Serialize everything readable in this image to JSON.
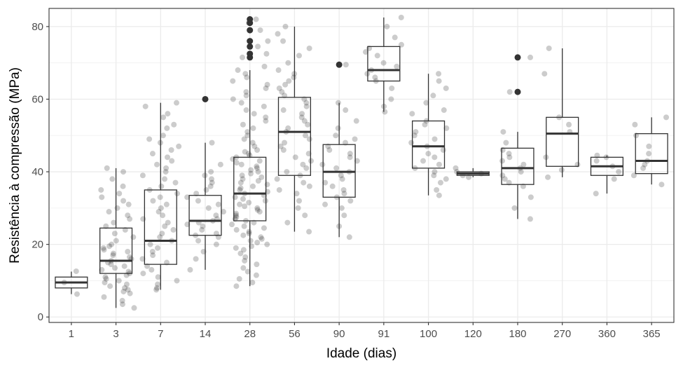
{
  "chart_data": {
    "type": "boxplot",
    "xlabel": "Idade (dias)",
    "ylabel": "Resistência à compressão (MPa)",
    "ylim": [
      -1.5,
      85
    ],
    "y_ticks": [
      "0",
      "20",
      "40",
      "60",
      "80"
    ],
    "grid": true,
    "categories": [
      "1",
      "3",
      "7",
      "14",
      "28",
      "56",
      "90",
      "91",
      "100",
      "120",
      "180",
      "270",
      "360",
      "365"
    ],
    "boxes": [
      {
        "q1": 8.0,
        "median": 9.5,
        "q3": 11.0,
        "whisker_low": 6.3,
        "whisker_high": 12.5,
        "outliers": []
      },
      {
        "q1": 12.0,
        "median": 15.5,
        "q3": 24.5,
        "whisker_low": 2.5,
        "whisker_high": 41.0,
        "outliers": []
      },
      {
        "q1": 14.5,
        "median": 21.0,
        "q3": 35.0,
        "whisker_low": 7.5,
        "whisker_high": 59.0,
        "outliers": []
      },
      {
        "q1": 22.5,
        "median": 26.5,
        "q3": 33.5,
        "whisker_low": 13.0,
        "whisker_high": 48.0,
        "outliers": [
          60.0
        ]
      },
      {
        "q1": 26.5,
        "median": 34.0,
        "q3": 44.0,
        "whisker_low": 8.5,
        "whisker_high": 68.0,
        "outliers": [
          71.5,
          72.5,
          74.5,
          76.0,
          79.0,
          81.0,
          82.0
        ]
      },
      {
        "q1": 39.0,
        "median": 51.0,
        "q3": 60.5,
        "whisker_low": 23.5,
        "whisker_high": 80.0,
        "outliers": []
      },
      {
        "q1": 33.0,
        "median": 40.0,
        "q3": 47.5,
        "whisker_low": 22.0,
        "whisker_high": 59.0,
        "outliers": [
          69.5
        ]
      },
      {
        "q1": 65.0,
        "median": 68.0,
        "q3": 74.5,
        "whisker_low": 56.5,
        "whisker_high": 82.5,
        "outliers": []
      },
      {
        "q1": 41.0,
        "median": 47.0,
        "q3": 54.0,
        "whisker_low": 33.5,
        "whisker_high": 67.0,
        "outliers": []
      },
      {
        "q1": 39.0,
        "median": 39.5,
        "q3": 40.0,
        "whisker_low": 38.5,
        "whisker_high": 41.0,
        "outliers": []
      },
      {
        "q1": 36.5,
        "median": 41.0,
        "q3": 46.5,
        "whisker_low": 27.0,
        "whisker_high": 51.0,
        "outliers": [
          62.0,
          71.5
        ]
      },
      {
        "q1": 41.5,
        "median": 50.5,
        "q3": 55.0,
        "whisker_low": 38.5,
        "whisker_high": 74.0,
        "outliers": []
      },
      {
        "q1": 39.0,
        "median": 41.5,
        "q3": 44.0,
        "whisker_low": 34.0,
        "whisker_high": 44.5,
        "outliers": []
      },
      {
        "q1": 39.5,
        "median": 43.0,
        "q3": 50.5,
        "whisker_low": 36.5,
        "whisker_high": 55.0,
        "outliers": []
      }
    ],
    "jitter_points": [
      {
        "category": "1",
        "values": [
          6.3,
          9.5,
          12.6
        ]
      },
      {
        "category": "3",
        "values": [
          2.5,
          3.5,
          4.5,
          5.5,
          6.5,
          7,
          7.5,
          8,
          8.5,
          9,
          9.5,
          10,
          10.5,
          11,
          11.5,
          12,
          12.5,
          13,
          13.5,
          14,
          14.5,
          15,
          15.5,
          16,
          16.5,
          17,
          17.5,
          18,
          18.5,
          19,
          19.5,
          20,
          21,
          22,
          23,
          24,
          25,
          26,
          27,
          28,
          29,
          30,
          31,
          32,
          33,
          34,
          35,
          36,
          38,
          40,
          41
        ]
      },
      {
        "category": "7",
        "values": [
          7.5,
          8,
          9,
          10,
          11,
          12,
          13,
          14,
          15,
          16,
          17,
          18,
          19,
          20,
          21,
          22,
          23,
          24,
          25,
          26,
          27,
          28,
          29,
          30,
          31,
          32,
          33,
          34,
          35,
          36,
          37,
          38,
          39,
          40,
          41,
          42,
          43,
          44,
          45,
          46,
          47,
          48,
          49,
          50,
          52,
          53,
          55,
          56,
          58,
          59
        ]
      },
      {
        "category": "14",
        "values": [
          13,
          16,
          18,
          20,
          21,
          22,
          22.5,
          23,
          24,
          25,
          25.5,
          26,
          26.5,
          27,
          28,
          29,
          30,
          31,
          32,
          33,
          34,
          35,
          36,
          37,
          38,
          39,
          40,
          42,
          48
        ]
      },
      {
        "category": "28",
        "values": [
          8.5,
          9.5,
          10.5,
          11.5,
          12.5,
          13.5,
          14.5,
          15.5,
          16.5,
          17.5,
          18.5,
          19,
          19.5,
          20,
          20.5,
          21,
          21.5,
          22,
          22.5,
          23,
          23.5,
          24,
          24.5,
          25,
          25.5,
          26,
          26.5,
          27,
          27.5,
          28,
          28.5,
          29,
          29.5,
          30,
          30.5,
          31,
          31.5,
          32,
          32.5,
          33,
          33.5,
          34,
          34.5,
          35,
          35.5,
          36,
          36.5,
          37,
          37.5,
          38,
          38.5,
          39,
          39.5,
          40,
          40.5,
          41,
          41.5,
          42,
          42.5,
          43,
          43.5,
          44,
          44.5,
          45,
          45.5,
          46,
          47,
          48,
          49,
          50,
          51,
          52,
          53,
          54,
          55,
          56,
          57,
          58,
          59,
          60,
          61,
          62,
          63,
          64,
          65,
          66,
          67,
          68,
          69,
          71.5,
          72.5,
          74.5,
          76,
          79,
          81,
          82
        ]
      },
      {
        "category": "56",
        "values": [
          23.5,
          26,
          28,
          30,
          32,
          34,
          35,
          36,
          37,
          38,
          39,
          40,
          41,
          42,
          43,
          44,
          45,
          46,
          47,
          48,
          49,
          50,
          51,
          52,
          53,
          54,
          55,
          56,
          57,
          58,
          59,
          60,
          61,
          62,
          63,
          64,
          65,
          66,
          67,
          68,
          70,
          72,
          74,
          76,
          78,
          80
        ]
      },
      {
        "category": "90",
        "values": [
          22,
          25,
          28,
          30,
          31,
          32,
          33,
          34,
          35,
          36,
          37,
          38,
          39,
          40,
          41,
          42,
          43,
          44,
          45,
          46,
          47,
          48,
          49,
          50,
          52,
          54,
          57,
          59,
          69.5
        ]
      },
      {
        "category": "91",
        "values": [
          56.5,
          58,
          60,
          63,
          65,
          66,
          67,
          68,
          69,
          70,
          72,
          73,
          74,
          75,
          77,
          80,
          82.5
        ]
      },
      {
        "category": "100",
        "values": [
          33.5,
          35,
          37,
          38,
          39,
          40,
          41,
          42,
          43,
          44,
          45,
          46,
          47,
          48,
          49,
          50,
          51,
          52,
          53,
          54,
          56,
          57,
          59,
          61,
          63,
          65,
          67
        ]
      },
      {
        "category": "120",
        "values": [
          38.5,
          39,
          39.5,
          40,
          41
        ]
      },
      {
        "category": "180",
        "values": [
          27,
          30,
          33,
          36,
          37,
          38,
          39,
          40,
          41,
          42,
          43,
          44,
          45,
          46,
          48,
          51,
          62,
          71.5
        ]
      },
      {
        "category": "270",
        "values": [
          38.5,
          40.5,
          42,
          44,
          51,
          53,
          55,
          67,
          74
        ]
      },
      {
        "category": "360",
        "values": [
          34,
          38,
          40,
          41.5,
          43,
          44,
          44.5
        ]
      },
      {
        "category": "365",
        "values": [
          36.5,
          39,
          41,
          42,
          43,
          45,
          47,
          50,
          53,
          55
        ]
      }
    ],
    "outlier_color": "#333333",
    "point_color": "#000000",
    "point_opacity": 0.2
  }
}
